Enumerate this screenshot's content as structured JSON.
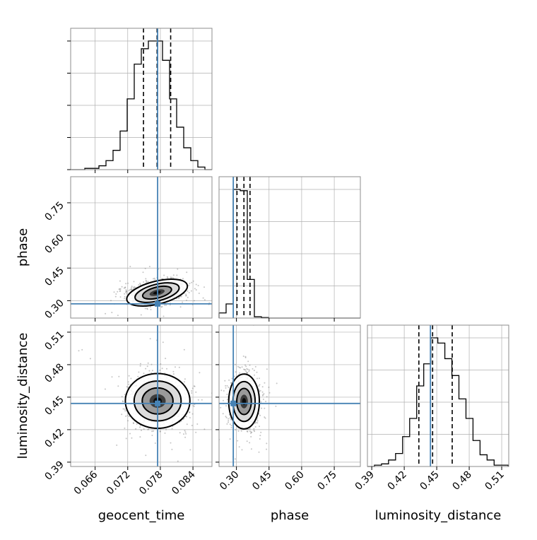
{
  "chart_data": {
    "type": "corner",
    "parameters": [
      "geocent_time",
      "phase",
      "luminosity_distance"
    ],
    "axis_labels": {
      "x": [
        "geocent_time",
        "phase",
        "luminosity_distance"
      ],
      "y": [
        "phase",
        "luminosity_distance"
      ]
    },
    "ranges": {
      "geocent_time": [
        0.0615,
        0.0875
      ],
      "phase": [
        0.22,
        0.87
      ],
      "luminosity_distance": [
        0.386,
        0.5165
      ]
    },
    "ticks": {
      "geocent_time": {
        "values": [
          0.066,
          0.072,
          0.078,
          0.084
        ],
        "labels": [
          "0.066",
          "0.072",
          "0.078",
          "0.084"
        ]
      },
      "phase": {
        "values": [
          0.3,
          0.45,
          0.6,
          0.75
        ],
        "labels": [
          "0.30",
          "0.45",
          "0.60",
          "0.75"
        ]
      },
      "luminosity_distance": {
        "values": [
          0.39,
          0.42,
          0.45,
          0.48,
          0.51
        ],
        "labels": [
          "0.39",
          "0.42",
          "0.45",
          "0.48",
          "0.51"
        ]
      }
    },
    "truths": {
      "geocent_time": 0.0775,
      "phase": 0.2855,
      "luminosity_distance": 0.4442
    },
    "quantiles": {
      "geocent_time": [
        0.0749,
        0.0774,
        0.0799
      ],
      "phase": [
        0.3025,
        0.3345,
        0.3625
      ],
      "luminosity_distance": [
        0.4335,
        0.4462,
        0.4643
      ]
    },
    "histograms": {
      "geocent_time": {
        "edges": [
          0.0615,
          0.0628,
          0.0641,
          0.0654,
          0.0667,
          0.068,
          0.0693,
          0.0706,
          0.0719,
          0.0732,
          0.0745,
          0.0758,
          0.0771,
          0.0784,
          0.0797,
          0.081,
          0.0823,
          0.0836,
          0.0849,
          0.0862,
          0.0875
        ],
        "counts": [
          0,
          0,
          1,
          1,
          3,
          7,
          15,
          30,
          55,
          82,
          94,
          100,
          100,
          85,
          55,
          33,
          17,
          7,
          2,
          0
        ]
      },
      "phase": {
        "edges": [
          0.22,
          0.2525,
          0.285,
          0.3175,
          0.35,
          0.3825,
          0.415,
          0.4475,
          0.48,
          0.5125,
          0.545,
          0.5775,
          0.61,
          0.6425,
          0.675,
          0.7075,
          0.74,
          0.7725,
          0.805,
          0.8375,
          0.87
        ],
        "counts": [
          4,
          11,
          100,
          99,
          30,
          1,
          0.4,
          0,
          0,
          0,
          0,
          0,
          0,
          0,
          0,
          0,
          0,
          0,
          0,
          0
        ]
      },
      "luminosity_distance": {
        "edges": [
          0.386,
          0.3925,
          0.399,
          0.4055,
          0.412,
          0.4185,
          0.425,
          0.4315,
          0.438,
          0.4445,
          0.451,
          0.4575,
          0.464,
          0.4705,
          0.477,
          0.4835,
          0.49,
          0.4965,
          0.503,
          0.5095,
          0.516
        ],
        "counts": [
          0,
          1,
          2,
          5,
          10,
          23,
          37,
          62,
          79,
          99,
          95,
          83,
          70,
          52,
          37,
          20,
          9,
          5,
          1,
          1
        ]
      }
    },
    "contours_2d": [
      {
        "x": "geocent_time",
        "y": "phase",
        "center": [
          0.0774,
          0.337
        ],
        "spread": [
          0.0026,
          0.024
        ],
        "tilt": 0.35
      },
      {
        "x": "geocent_time",
        "y": "luminosity_distance",
        "center": [
          0.0775,
          0.4465
        ],
        "spread": [
          0.0027,
          0.0115
        ],
        "tilt": 0
      },
      {
        "x": "phase",
        "y": "luminosity_distance",
        "center": [
          0.335,
          0.446
        ],
        "spread": [
          0.032,
          0.0115
        ],
        "tilt": 0
      }
    ],
    "grid": true,
    "colors": {
      "truth": "#4682b4",
      "quantile": "#000000",
      "hist": "#000000",
      "contour": "#000000",
      "grid": "#b0b0b0",
      "points": "#7f7f7f"
    }
  }
}
